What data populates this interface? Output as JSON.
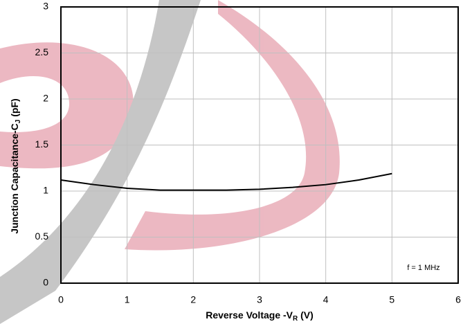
{
  "chart_data": {
    "type": "line",
    "x_label": {
      "prefix": "Reverse Voltage -V",
      "sub": "R",
      "suffix": " (V)"
    },
    "y_label": {
      "prefix": "Junction Capacitance-C",
      "sub": "J",
      "suffix": " (pF)"
    },
    "annotation": "f = 1 MHz",
    "x": [
      0,
      0.5,
      1,
      1.5,
      2,
      2.5,
      3,
      3.5,
      4,
      4.5,
      5
    ],
    "series": [
      {
        "color": "#000000",
        "values": [
          1.12,
          1.07,
          1.03,
          1.01,
          1.01,
          1.01,
          1.02,
          1.04,
          1.07,
          1.12,
          1.19
        ]
      }
    ],
    "xlim": [
      0,
      6
    ],
    "xticks": [
      0,
      1,
      2,
      3,
      4,
      5,
      6
    ],
    "ylim": [
      0,
      3
    ],
    "yticks": [
      0,
      0.5,
      1,
      1.5,
      2,
      2.5,
      3
    ],
    "grid": true
  }
}
